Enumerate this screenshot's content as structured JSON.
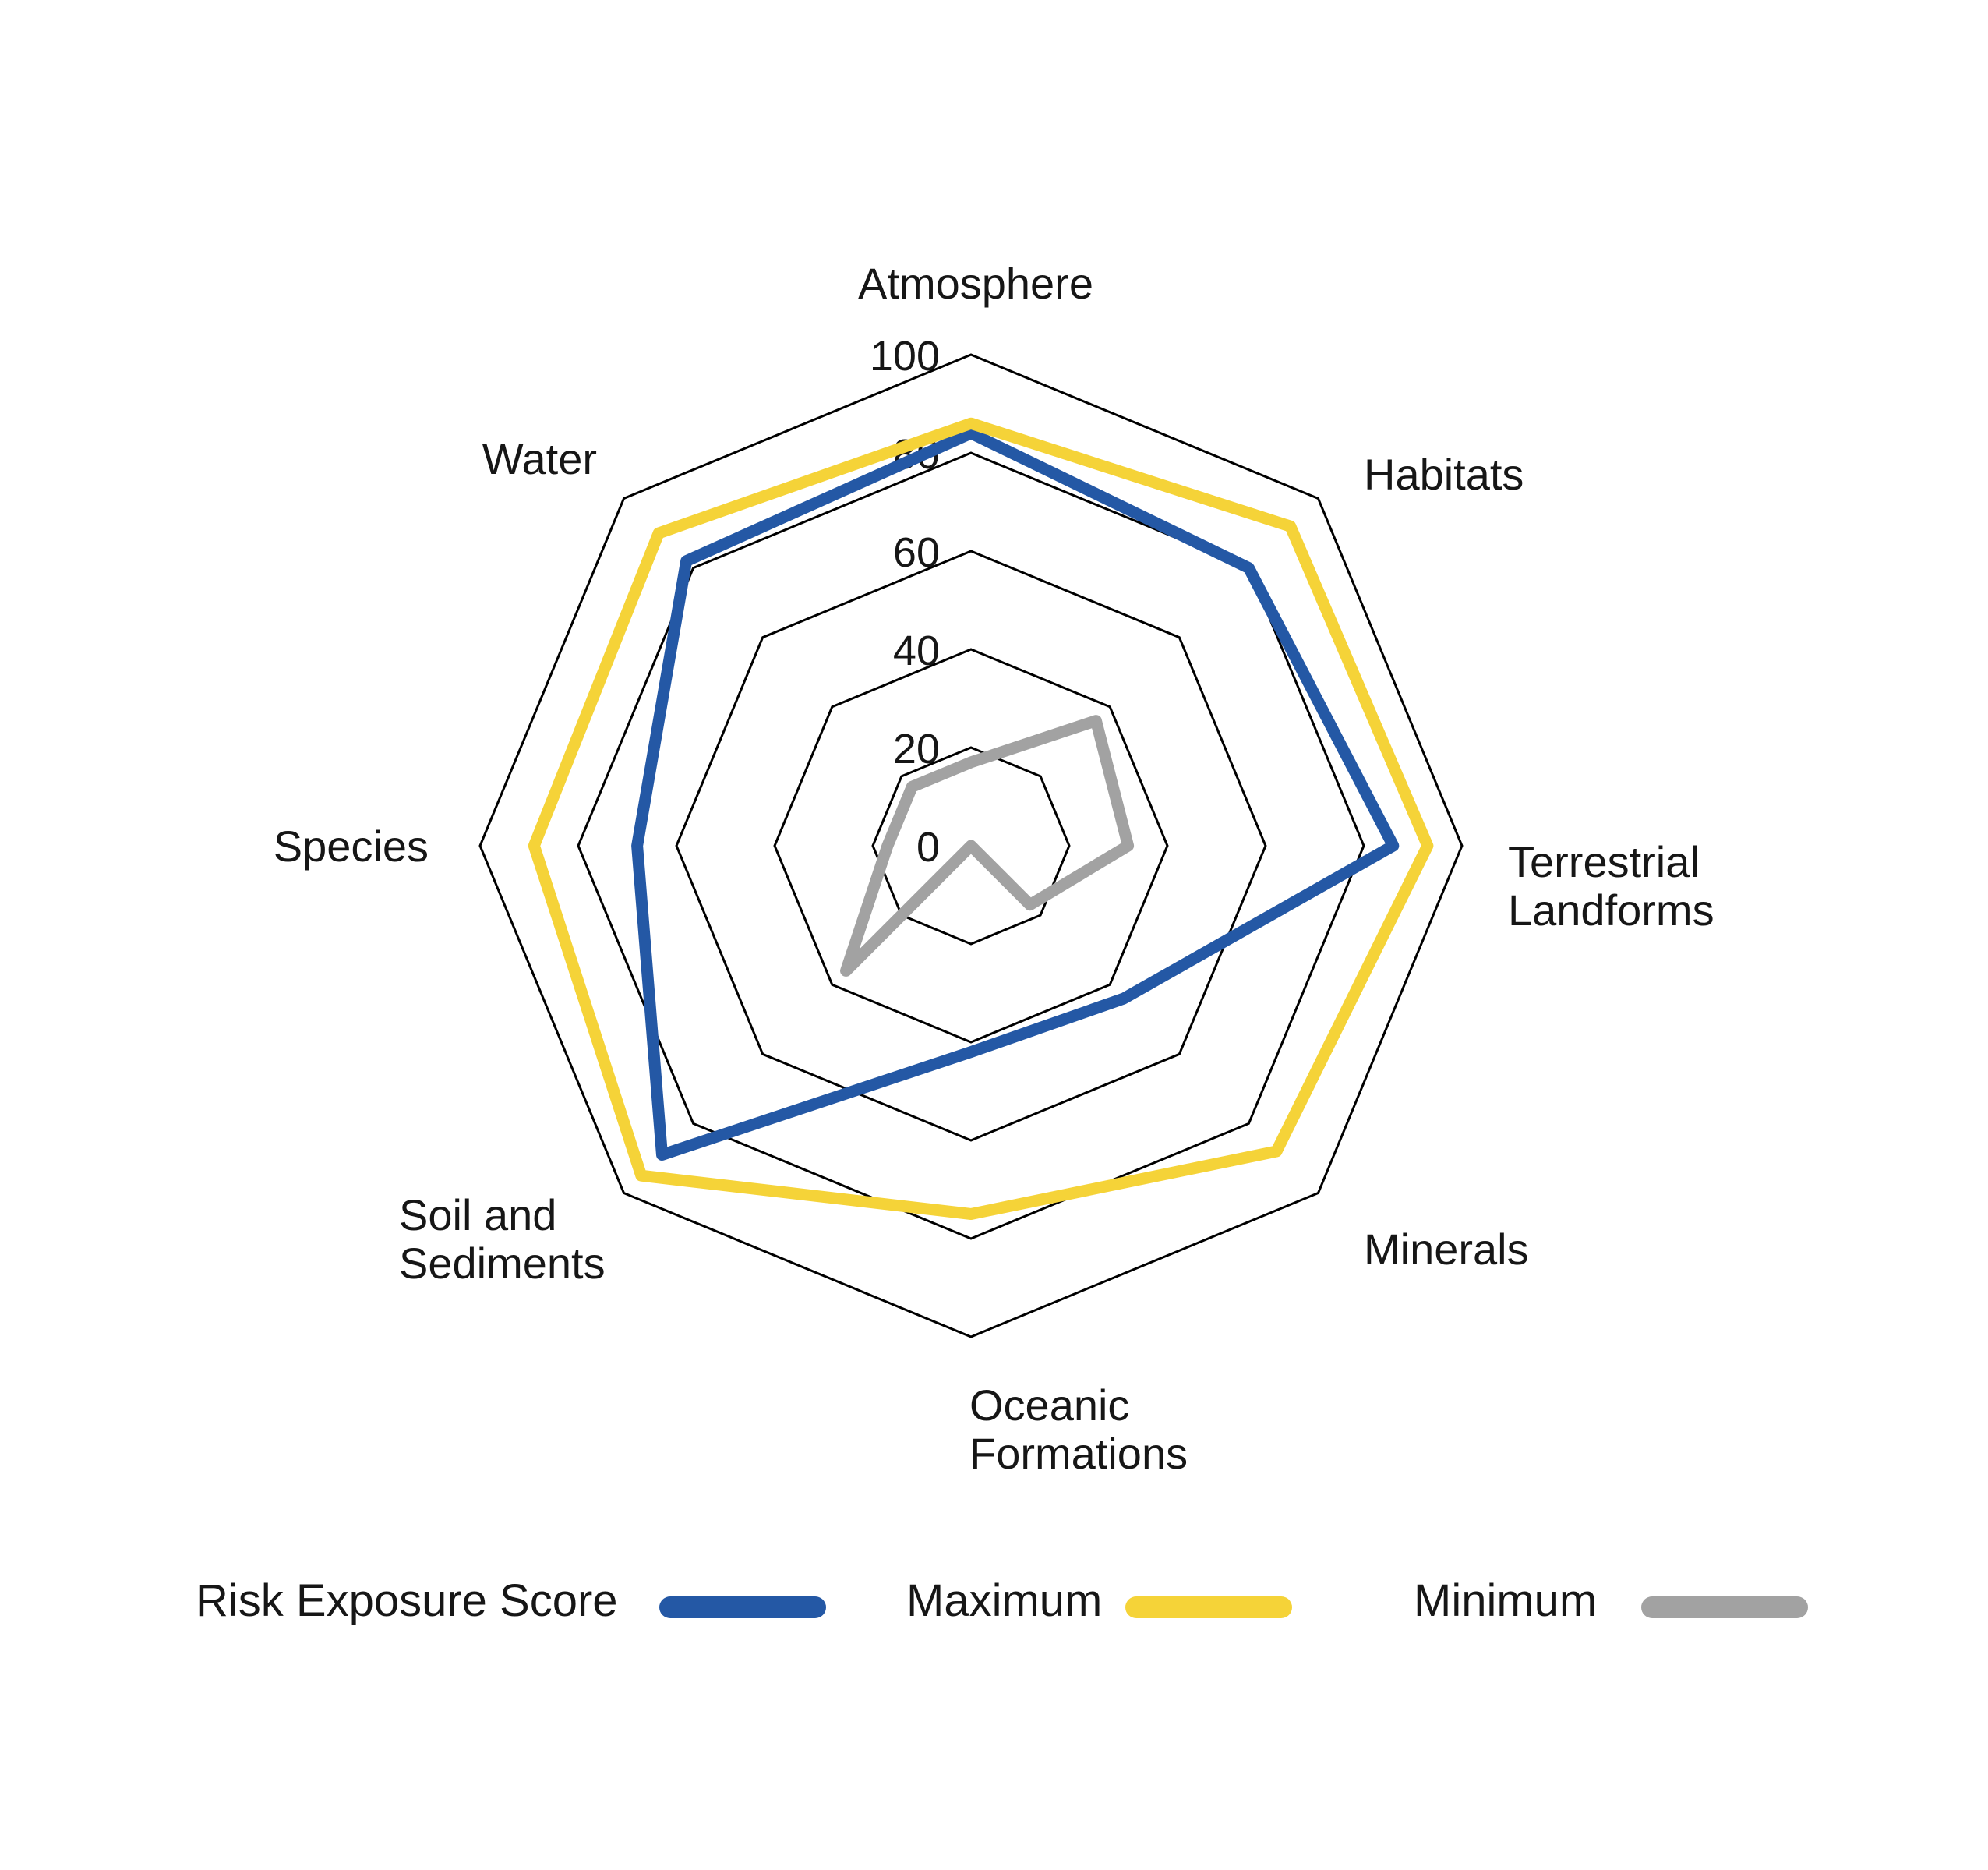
{
  "chart_data": {
    "type": "radar",
    "title": "",
    "axes": [
      {
        "label": "Atmosphere",
        "lines": [
          "Atmosphere"
        ]
      },
      {
        "label": "Habitats",
        "lines": [
          "Habitats"
        ]
      },
      {
        "label": "Terrestrial Landforms",
        "lines": [
          "Terrestrial",
          "Landforms"
        ]
      },
      {
        "label": "Minerals",
        "lines": [
          "Minerals"
        ]
      },
      {
        "label": "Oceanic Formations",
        "lines": [
          "Oceanic",
          "Formations"
        ]
      },
      {
        "label": "Soil and Sediments",
        "lines": [
          "Soil and",
          "Sediments"
        ]
      },
      {
        "label": "Species",
        "lines": [
          "Species"
        ]
      },
      {
        "label": "Water",
        "lines": [
          "Water"
        ]
      }
    ],
    "rmin": 0,
    "rmax": 100,
    "ticks": [
      0,
      20,
      40,
      60,
      80,
      100
    ],
    "grid_rings": [
      20,
      40,
      60,
      80,
      100
    ],
    "grid_color": "#000000",
    "grid_shape": "octagon",
    "legend_position": "bottom",
    "series": [
      {
        "name": "Risk Exposure Score",
        "color": "#2458A5",
        "values": [
          84,
          80,
          86,
          44,
          42,
          89,
          68,
          82
        ]
      },
      {
        "name": "Maximum",
        "color": "#F5D338",
        "values": [
          86,
          92,
          93,
          88,
          75,
          95,
          89,
          90
        ]
      },
      {
        "name": "Minimum",
        "color": "#A2A2A2",
        "values": [
          17,
          36,
          32,
          17,
          0,
          36,
          17,
          17
        ]
      }
    ]
  }
}
